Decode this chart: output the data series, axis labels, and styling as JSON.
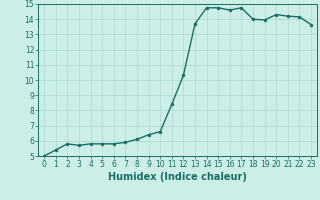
{
  "x": [
    0,
    1,
    2,
    3,
    4,
    5,
    6,
    7,
    8,
    9,
    10,
    11,
    12,
    13,
    14,
    15,
    16,
    17,
    18,
    19,
    20,
    21,
    22,
    23
  ],
  "y": [
    5.0,
    5.4,
    5.8,
    5.7,
    5.8,
    5.8,
    5.8,
    5.9,
    6.1,
    6.4,
    6.6,
    8.4,
    10.3,
    13.7,
    14.75,
    14.75,
    14.6,
    14.75,
    14.0,
    13.95,
    14.3,
    14.2,
    14.15,
    13.65
  ],
  "line_color": "#1a7060",
  "marker": "o",
  "marker_size": 2.0,
  "linewidth": 1.0,
  "background_color": "#cceee8",
  "grid_color": "#aad8d0",
  "xlabel": "Humidex (Indice chaleur)",
  "xlabel_fontsize": 7,
  "xlim": [
    -0.5,
    23.5
  ],
  "ylim": [
    5,
    15
  ],
  "yticks": [
    5,
    6,
    7,
    8,
    9,
    10,
    11,
    12,
    13,
    14,
    15
  ],
  "xticks": [
    0,
    1,
    2,
    3,
    4,
    5,
    6,
    7,
    8,
    9,
    10,
    11,
    12,
    13,
    14,
    15,
    16,
    17,
    18,
    19,
    20,
    21,
    22,
    23
  ],
  "tick_fontsize": 5.5,
  "tick_color": "#1a7060",
  "label_color": "#1a7060"
}
